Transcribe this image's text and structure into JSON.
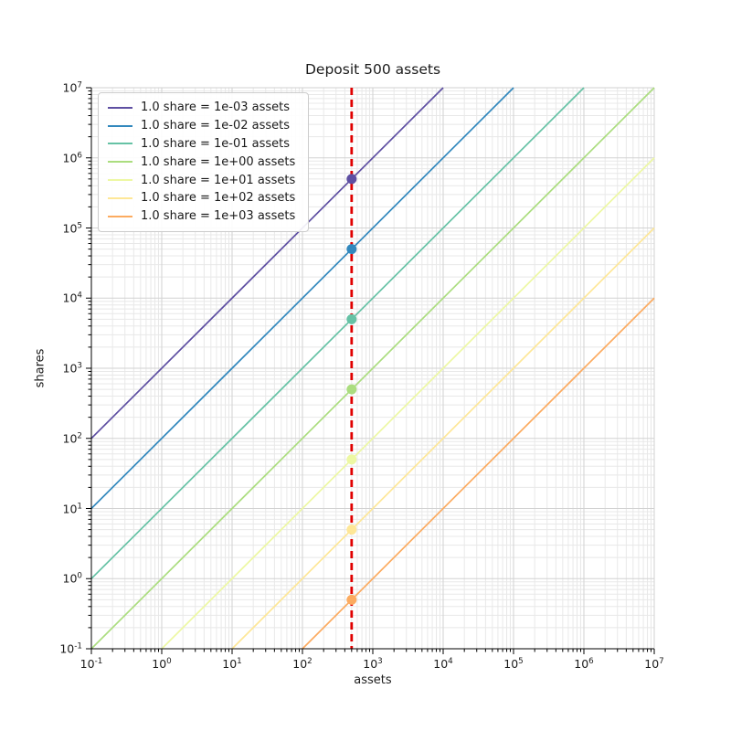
{
  "chart_data": {
    "type": "line",
    "title": "Deposit 500 assets",
    "xlabel": "assets",
    "ylabel": "shares",
    "xscale": "log",
    "yscale": "log",
    "xlim": [
      0.1,
      10000000
    ],
    "ylim": [
      0.1,
      10000000
    ],
    "x_tick_exponents": [
      -1,
      0,
      1,
      2,
      3,
      4,
      5,
      6,
      7
    ],
    "y_tick_exponents": [
      -1,
      0,
      1,
      2,
      3,
      4,
      5,
      6,
      7
    ],
    "grid": "major+minor",
    "legend_position": "upper left",
    "deposit": {
      "assets": 500,
      "line_color": "#e00000",
      "line_style": "dashed"
    },
    "series": [
      {
        "label": "1.0 share = 1e-03 assets",
        "assets_per_share": 0.001,
        "color": "#5e4fa2",
        "deposit_shares": 500000
      },
      {
        "label": "1.0 share = 1e-02 assets",
        "assets_per_share": 0.01,
        "color": "#3288bd",
        "deposit_shares": 50000
      },
      {
        "label": "1.0 share = 1e-01 assets",
        "assets_per_share": 0.1,
        "color": "#66c2a5",
        "deposit_shares": 5000
      },
      {
        "label": "1.0 share = 1e+00 assets",
        "assets_per_share": 1,
        "color": "#abdd7f",
        "deposit_shares": 500
      },
      {
        "label": "1.0 share = 1e+01 assets",
        "assets_per_share": 10,
        "color": "#edf8a3",
        "deposit_shares": 50
      },
      {
        "label": "1.0 share = 1e+02 assets",
        "assets_per_share": 100,
        "color": "#fee797",
        "deposit_shares": 5
      },
      {
        "label": "1.0 share = 1e+03 assets",
        "assets_per_share": 1000,
        "color": "#fcab60",
        "deposit_shares": 0.5
      }
    ]
  }
}
